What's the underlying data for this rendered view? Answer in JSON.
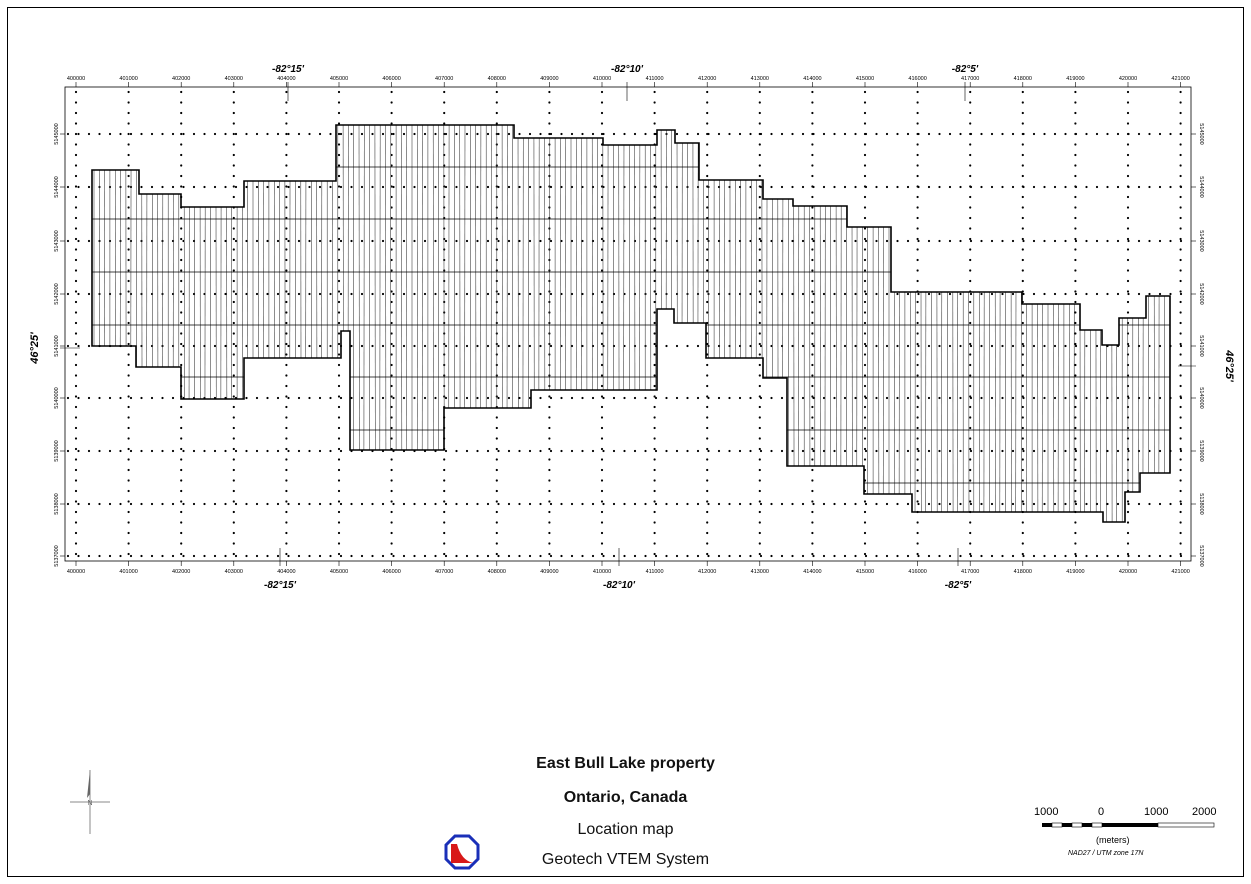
{
  "map": {
    "top_longitude_labels": [
      "-82°15'",
      "-82°10'",
      "-82°5'"
    ],
    "bottom_longitude_labels": [
      "-82°15'",
      "-82°10'",
      "-82°5'"
    ],
    "left_latitude_label": "46°25'",
    "right_latitude_label": "46°25'",
    "easting_ticks": [
      "400000",
      "401000",
      "402000",
      "403000",
      "404000",
      "405000",
      "406000",
      "407000",
      "408000",
      "409000",
      "410000",
      "411000",
      "412000",
      "413000",
      "414000",
      "415000",
      "416000",
      "417000",
      "418000",
      "419000",
      "420000",
      "421000"
    ],
    "northing_ticks": [
      "5145000",
      "5144000",
      "5143000",
      "5142000",
      "5141000",
      "5140000",
      "5139000",
      "5138000",
      "5137000"
    ]
  },
  "title": {
    "property": "East Bull Lake property",
    "location": "Ontario, Canada",
    "description": "Location map",
    "system": "Geotech VTEM System"
  },
  "scale": {
    "labels": [
      "1000",
      "0",
      "1000",
      "2000"
    ],
    "unit": "(meters)",
    "datum": "NAD27 / UTM zone 17N"
  },
  "colors": {
    "logo_ring": "#1a2fb8",
    "logo_fill": "#d81818"
  }
}
